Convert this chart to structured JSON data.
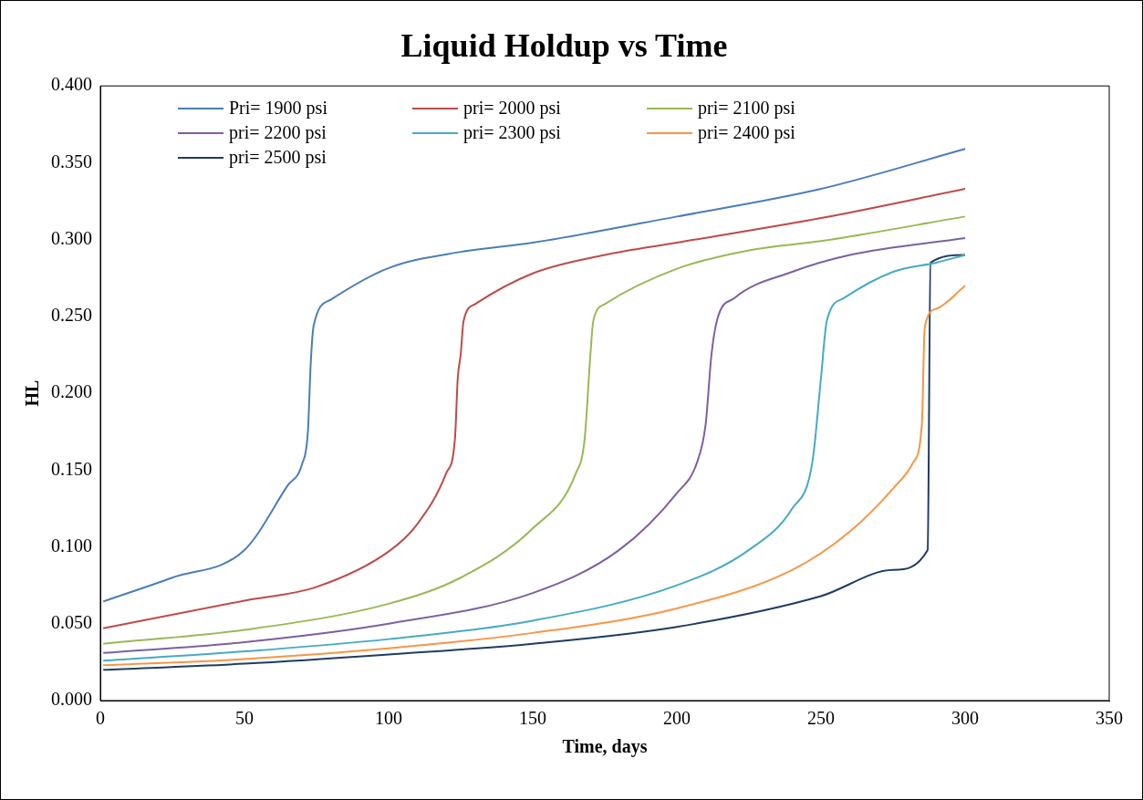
{
  "chart_data": {
    "type": "line",
    "title": "Liquid Holdup vs Time",
    "xlabel": "Time, days",
    "ylabel": "HL",
    "xlim": [
      0,
      350
    ],
    "xticks": [
      0,
      50,
      100,
      150,
      200,
      250,
      300,
      350
    ],
    "ylim": [
      0,
      0.4
    ],
    "yticks": [
      {
        "value": 0,
        "label": "0.000"
      },
      {
        "value": 0.05,
        "label": "0.050"
      },
      {
        "value": 0.1,
        "label": "0.100"
      },
      {
        "value": 0.15,
        "label": "0.150"
      },
      {
        "value": 0.2,
        "label": "0.200"
      },
      {
        "value": 0.25,
        "label": "0.250"
      },
      {
        "value": 0.3,
        "label": "0.300"
      },
      {
        "value": 0.35,
        "label": "0.350"
      },
      {
        "value": 0.4,
        "label": "0.400"
      }
    ],
    "grid": false,
    "legend": "top",
    "marker": "none",
    "line_style": "solid",
    "series": [
      {
        "name": "Pri= 1900 psi",
        "color": "#4a7ebb",
        "x": [
          1,
          25,
          50,
          65,
          70,
          72,
          73,
          74,
          80,
          100,
          125,
          150,
          200,
          250,
          300
        ],
        "values": [
          0.0645,
          0.08,
          0.098,
          0.14,
          0.154,
          0.175,
          0.22,
          0.244,
          0.261,
          0.2815,
          0.292,
          0.298,
          0.315,
          0.333,
          0.359
        ]
      },
      {
        "name": "pri= 2000 psi",
        "color": "#be4b48",
        "x": [
          1,
          50,
          75,
          100,
          110,
          120,
          123,
          124,
          125,
          126,
          130,
          150,
          175,
          200,
          250,
          300
        ],
        "values": [
          0.047,
          0.065,
          0.074,
          0.097,
          0.115,
          0.148,
          0.17,
          0.21,
          0.225,
          0.247,
          0.258,
          0.278,
          0.29,
          0.298,
          0.314,
          0.333
        ]
      },
      {
        "name": "pri= 2100 psi",
        "color": "#98b954",
        "x": [
          1,
          50,
          100,
          125,
          150,
          165,
          168,
          170,
          171,
          175,
          200,
          225,
          250,
          300
        ],
        "values": [
          0.037,
          0.046,
          0.063,
          0.08,
          0.112,
          0.148,
          0.17,
          0.225,
          0.247,
          0.258,
          0.281,
          0.293,
          0.299,
          0.315
        ]
      },
      {
        "name": "pri= 2200 psi",
        "color": "#7d60a0",
        "x": [
          1,
          50,
          100,
          150,
          180,
          200,
          207,
          210,
          212,
          214,
          220,
          240,
          260,
          300
        ],
        "values": [
          0.031,
          0.038,
          0.05,
          0.07,
          0.098,
          0.135,
          0.155,
          0.18,
          0.225,
          0.248,
          0.262,
          0.279,
          0.29,
          0.301
        ]
      },
      {
        "name": "pri= 2300 psi",
        "color": "#46aac5",
        "x": [
          1,
          50,
          100,
          150,
          200,
          225,
          240,
          247,
          250,
          252,
          258,
          275,
          290,
          300
        ],
        "values": [
          0.026,
          0.032,
          0.04,
          0.052,
          0.075,
          0.098,
          0.125,
          0.155,
          0.21,
          0.247,
          0.262,
          0.279,
          0.285,
          0.29
        ]
      },
      {
        "name": "pri= 2400 psi",
        "color": "#f79646",
        "x": [
          1,
          50,
          100,
          150,
          200,
          240,
          260,
          275,
          282,
          285,
          286,
          290,
          300
        ],
        "values": [
          0.023,
          0.027,
          0.034,
          0.044,
          0.06,
          0.085,
          0.11,
          0.138,
          0.155,
          0.18,
          0.243,
          0.255,
          0.27
        ]
      },
      {
        "name": "pri= 2500 psi",
        "color": "#1f3c64",
        "x": [
          1,
          50,
          100,
          150,
          200,
          250,
          275,
          287,
          288,
          300
        ],
        "values": [
          0.02,
          0.024,
          0.03,
          0.037,
          0.048,
          0.068,
          0.085,
          0.098,
          0.285,
          0.29
        ]
      }
    ]
  }
}
